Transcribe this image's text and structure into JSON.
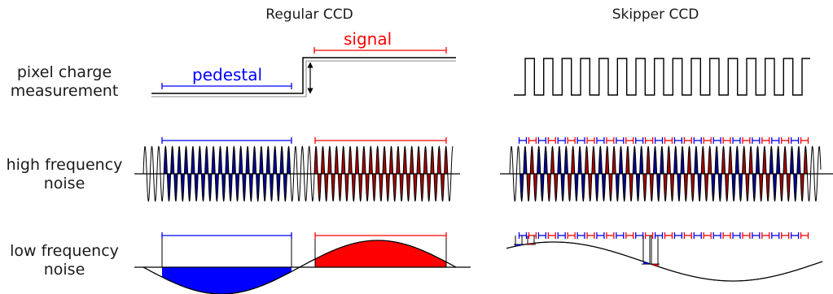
{
  "titles": {
    "left": "Regular CCD",
    "right": "Skipper CCD"
  },
  "row_labels": {
    "charge": [
      "pixel charge",
      "measurement"
    ],
    "high": [
      "high frequency",
      "noise"
    ],
    "low": [
      "low frequency",
      "noise"
    ]
  },
  "annotations": {
    "pedestal": "pedestal",
    "signal": "signal"
  },
  "colors": {
    "pedestal": "#0000ff",
    "signal": "#ff0000",
    "pedestal_fill": "#00009a",
    "signal_fill": "#aa0000",
    "line": "#000000"
  }
}
